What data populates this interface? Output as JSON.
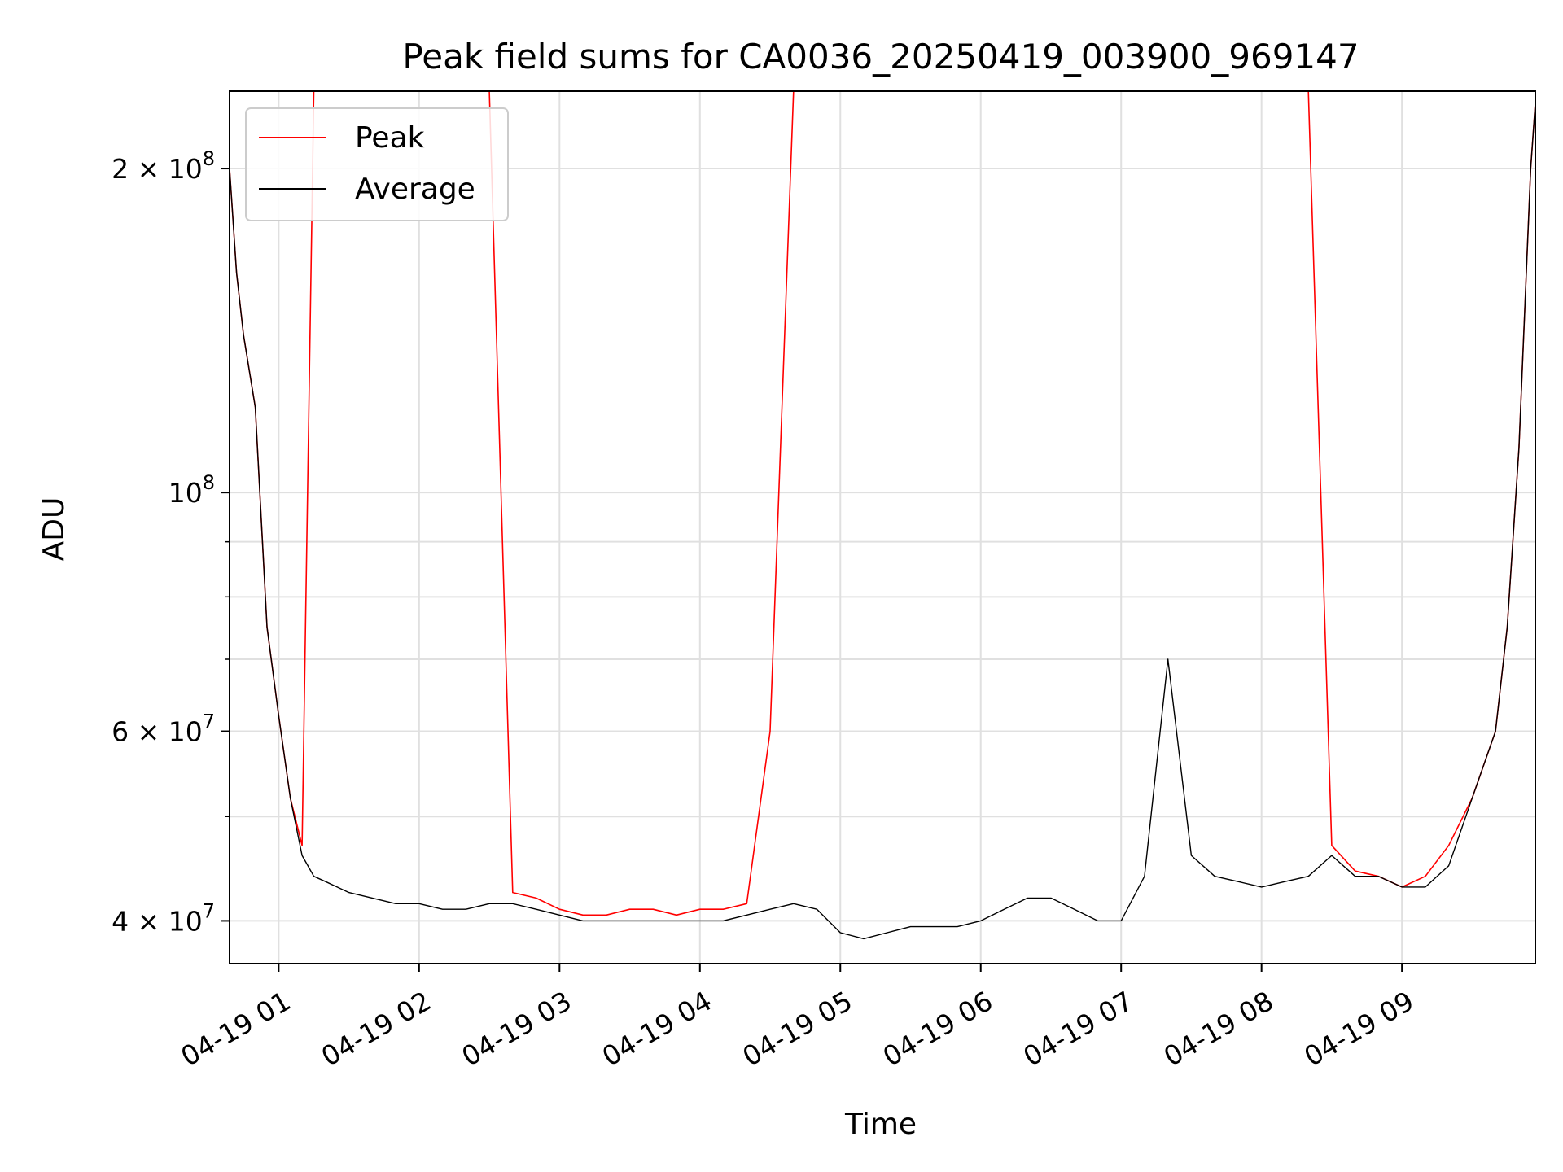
{
  "chart_data": {
    "type": "line",
    "title": "Peak field sums for CA0036_20250419_003900_969147",
    "xlabel": "Time",
    "ylabel": "ADU",
    "yscale": "log",
    "ylim": [
      36500000,
      236000000
    ],
    "xlim": [
      "2025-04-19 00:39",
      "2025-04-19 09:57"
    ],
    "x_ticks": [
      "04-19 01",
      "04-19 02",
      "04-19 03",
      "04-19 04",
      "04-19 05",
      "04-19 06",
      "04-19 07",
      "04-19 08",
      "04-19 09"
    ],
    "y_ticks_major": [
      {
        "value": 40000000,
        "mantissa": "4",
        "exp": "7"
      },
      {
        "value": 60000000,
        "mantissa": "6",
        "exp": "7"
      },
      {
        "value": 100000000,
        "mantissa": "",
        "exp": "8"
      },
      {
        "value": 200000000,
        "mantissa": "2",
        "exp": "8"
      }
    ],
    "y_ticks_minor": [
      50000000,
      70000000,
      80000000,
      90000000
    ],
    "grid": true,
    "legend_position": "upper left",
    "series": [
      {
        "name": "Peak",
        "color": "#ff0000",
        "x": [
          "00:39",
          "00:42",
          "00:45",
          "00:50",
          "00:55",
          "01:00",
          "01:05",
          "01:10",
          "01:15",
          "01:20",
          "01:25",
          "01:30",
          "01:40",
          "01:50",
          "02:00",
          "02:10",
          "02:20",
          "02:30",
          "02:40",
          "02:50",
          "03:00",
          "03:10",
          "03:20",
          "03:30",
          "03:40",
          "03:50",
          "04:00",
          "04:10",
          "04:20",
          "04:30",
          "04:40",
          "04:50",
          "05:00",
          "05:10",
          "05:20",
          "05:30",
          "05:40",
          "05:50",
          "06:00",
          "06:10",
          "06:20",
          "06:30",
          "06:40",
          "06:50",
          "07:00",
          "07:10",
          "07:20",
          "07:30",
          "07:40",
          "07:50",
          "08:00",
          "08:10",
          "08:20",
          "08:30",
          "08:40",
          "08:50",
          "09:00",
          "09:10",
          "09:20",
          "09:30",
          "09:40",
          "09:45",
          "09:50",
          "09:55",
          "09:57"
        ],
        "y": [
          200000000,
          160000000,
          140000000,
          120000000,
          75000000,
          62000000,
          52000000,
          47000000,
          236000000,
          236000000,
          236000000,
          236000000,
          236000000,
          236000000,
          236000000,
          236000000,
          236000000,
          236000000,
          42500000,
          42000000,
          41000000,
          40500000,
          40500000,
          41000000,
          41000000,
          40500000,
          41000000,
          41000000,
          41500000,
          60000000,
          236000000,
          236000000,
          236000000,
          236000000,
          236000000,
          236000000,
          236000000,
          236000000,
          236000000,
          236000000,
          236000000,
          236000000,
          236000000,
          236000000,
          236000000,
          236000000,
          236000000,
          236000000,
          236000000,
          236000000,
          236000000,
          236000000,
          236000000,
          47000000,
          44500000,
          44000000,
          43000000,
          44000000,
          47000000,
          52000000,
          60000000,
          75000000,
          110000000,
          200000000,
          230000000
        ]
      },
      {
        "name": "Average",
        "color": "#000000",
        "x": [
          "00:39",
          "00:42",
          "00:45",
          "00:50",
          "00:55",
          "01:00",
          "01:05",
          "01:10",
          "01:15",
          "01:20",
          "01:25",
          "01:30",
          "01:40",
          "01:50",
          "02:00",
          "02:10",
          "02:20",
          "02:30",
          "02:40",
          "02:50",
          "03:00",
          "03:10",
          "03:20",
          "03:30",
          "03:40",
          "03:50",
          "04:00",
          "04:10",
          "04:20",
          "04:30",
          "04:40",
          "04:50",
          "05:00",
          "05:10",
          "05:20",
          "05:30",
          "05:40",
          "05:50",
          "06:00",
          "06:10",
          "06:20",
          "06:30",
          "06:40",
          "06:50",
          "07:00",
          "07:10",
          "07:20",
          "07:30",
          "07:40",
          "07:50",
          "08:00",
          "08:10",
          "08:20",
          "08:30",
          "08:40",
          "08:50",
          "09:00",
          "09:10",
          "09:20",
          "09:30",
          "09:40",
          "09:45",
          "09:50",
          "09:55",
          "09:57"
        ],
        "y": [
          200000000,
          160000000,
          140000000,
          120000000,
          75000000,
          62000000,
          52000000,
          46000000,
          44000000,
          43500000,
          43000000,
          42500000,
          42000000,
          41500000,
          41500000,
          41000000,
          41000000,
          41500000,
          41500000,
          41000000,
          40500000,
          40000000,
          40000000,
          40000000,
          40000000,
          40000000,
          40000000,
          40000000,
          40500000,
          41000000,
          41500000,
          41000000,
          39000000,
          38500000,
          39000000,
          39500000,
          39500000,
          39500000,
          40000000,
          41000000,
          42000000,
          42000000,
          41000000,
          40000000,
          40000000,
          44000000,
          70000000,
          46000000,
          44000000,
          43500000,
          43000000,
          43500000,
          44000000,
          46000000,
          44000000,
          44000000,
          43000000,
          43000000,
          45000000,
          52000000,
          60000000,
          75000000,
          110000000,
          200000000,
          230000000
        ]
      }
    ]
  }
}
